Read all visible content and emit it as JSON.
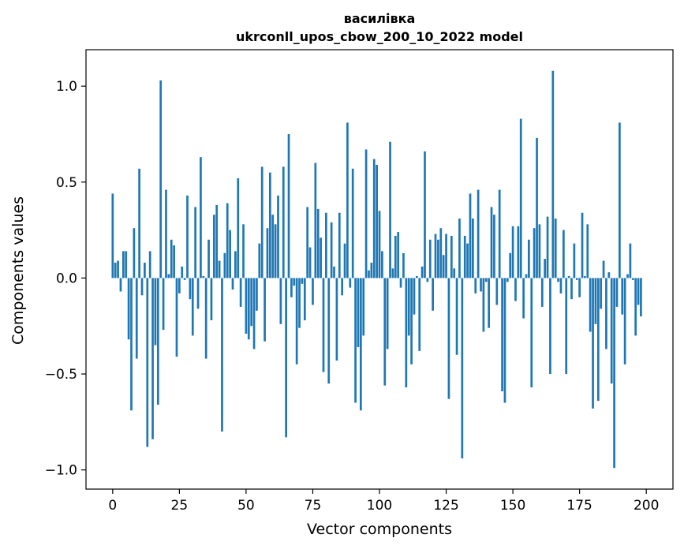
{
  "chart_data": {
    "type": "bar",
    "title": "василівка",
    "subtitle": "ukrconll_upos_cbow_200_10_2022 model",
    "xlabel": "Vector components",
    "ylabel": "Components values",
    "xlim": [
      -10,
      210
    ],
    "ylim": [
      -1.1,
      1.19
    ],
    "xticks": [
      0,
      25,
      50,
      75,
      100,
      125,
      150,
      175,
      200
    ],
    "yticks": [
      -1.0,
      -0.5,
      0.0,
      0.5,
      1.0
    ],
    "ytick_labels": [
      "−1.0",
      "−0.5",
      "0.0",
      "0.5",
      "1.0"
    ],
    "bar_color": "#1f77b4",
    "grid": false,
    "values": [
      0.44,
      0.08,
      0.09,
      -0.07,
      0.14,
      0.14,
      -0.32,
      -0.69,
      0.26,
      -0.42,
      0.57,
      -0.09,
      0.08,
      -0.88,
      0.14,
      -0.84,
      -0.35,
      -0.66,
      1.03,
      -0.27,
      0.46,
      0.02,
      0.2,
      0.17,
      -0.41,
      -0.08,
      0.06,
      -0.01,
      0.43,
      -0.11,
      -0.3,
      0.37,
      -0.16,
      0.63,
      0.01,
      -0.42,
      0.2,
      -0.22,
      0.33,
      0.38,
      0.09,
      -0.8,
      0.13,
      0.39,
      0.25,
      -0.06,
      0.14,
      0.52,
      -0.15,
      0.28,
      -0.29,
      -0.32,
      -0.25,
      -0.37,
      -0.17,
      0.18,
      0.58,
      -0.33,
      0.26,
      0.55,
      0.33,
      0.28,
      0.43,
      -0.24,
      0.58,
      -0.83,
      0.75,
      -0.1,
      -0.04,
      -0.45,
      -0.26,
      -0.03,
      -0.22,
      0.37,
      0.16,
      -0.14,
      0.6,
      0.36,
      0.21,
      -0.49,
      0.34,
      -0.55,
      0.29,
      0.06,
      -0.43,
      0.34,
      -0.09,
      0.18,
      0.81,
      -0.05,
      0.57,
      -0.65,
      -0.36,
      -0.69,
      -0.3,
      0.67,
      0.04,
      0.08,
      0.62,
      0.59,
      0.35,
      0.14,
      -0.56,
      -0.37,
      0.71,
      0.05,
      0.22,
      0.24,
      -0.05,
      0.13,
      -0.57,
      -0.3,
      -0.45,
      -0.19,
      0.01,
      -0.38,
      0.06,
      0.66,
      -0.02,
      0.2,
      -0.17,
      0.23,
      0.2,
      0.26,
      0.12,
      0.23,
      -0.63,
      0.22,
      0.05,
      -0.4,
      0.31,
      -0.94,
      0.22,
      0.18,
      0.44,
      0.31,
      -0.08,
      0.46,
      -0.07,
      -0.28,
      -0.02,
      -0.26,
      0.37,
      0.33,
      -0.14,
      0.46,
      -0.59,
      -0.65,
      -0.02,
      0.13,
      0.27,
      -0.12,
      0.27,
      0.83,
      -0.21,
      0.02,
      0.2,
      -0.57,
      0.26,
      0.73,
      0.28,
      -0.15,
      0.1,
      0.32,
      -0.5,
      1.08,
      0.31,
      -0.02,
      -0.08,
      0.25,
      -0.5,
      0.01,
      -0.11,
      0.18,
      -0.01,
      -0.1,
      0.34,
      0.01,
      0.28,
      -0.28,
      -0.68,
      -0.24,
      -0.64,
      -0.16,
      0.09,
      -0.37,
      0.03,
      -0.55,
      -0.99,
      -0.15,
      0.81,
      -0.19,
      -0.45,
      0.02,
      0.18,
      -0.01,
      -0.3,
      -0.14,
      -0.2
    ]
  }
}
